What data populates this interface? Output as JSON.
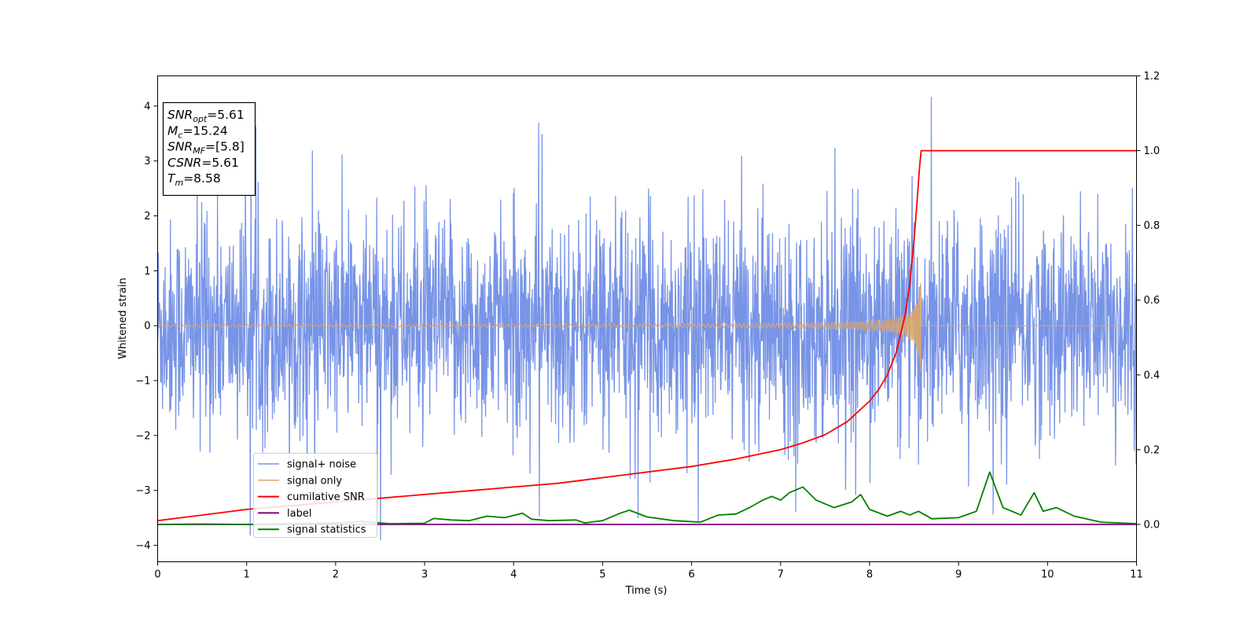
{
  "chart_data": {
    "type": "line",
    "xlabel": "Time (s)",
    "ylabel": "Whitened strain",
    "xlim": [
      0,
      11
    ],
    "ylim_left": [
      -4.3,
      4.55
    ],
    "ylim_right": [
      -0.1,
      1.2
    ],
    "x_ticks": [
      0,
      1,
      2,
      3,
      4,
      5,
      6,
      7,
      8,
      9,
      10,
      11
    ],
    "y_ticks_left": [
      -4,
      -3,
      -2,
      -1,
      0,
      1,
      2,
      3,
      4
    ],
    "y_ticks_right": [
      0.0,
      0.2,
      0.4,
      0.6,
      0.8,
      1.0,
      1.2
    ],
    "grid": false,
    "legend_placement": "lower-left",
    "info_box": {
      "lines": [
        {
          "main": "SNR",
          "sub": "opt",
          "rest": "=5.61"
        },
        {
          "main": "M",
          "sub": "c",
          "rest": "=15.24"
        },
        {
          "main": "SNR",
          "sub": "MF",
          "rest": "=[5.8]"
        },
        {
          "main": "CSNR",
          "sub": "",
          "rest": "=5.61"
        },
        {
          "main": "T",
          "sub": "m",
          "rest": "=8.58"
        }
      ]
    },
    "merger_time": 8.58,
    "series": [
      {
        "name": "signal+ noise",
        "color": "#7894e6",
        "axis": "left",
        "description_values": {
          "std": 0.95,
          "max": 4.2,
          "min": -3.9
        }
      },
      {
        "name": "signal only",
        "color": "#daa66d",
        "axis": "left",
        "peak_amplitude": 1.0,
        "peak_time": 8.58
      },
      {
        "name": "cumilative SNR",
        "color": "#ff0000",
        "axis": "right",
        "points": [
          [
            0,
            0.01
          ],
          [
            0.5,
            0.025
          ],
          [
            1,
            0.04
          ],
          [
            1.5,
            0.05
          ],
          [
            2,
            0.06
          ],
          [
            2.5,
            0.07
          ],
          [
            3,
            0.08
          ],
          [
            3.5,
            0.09
          ],
          [
            4,
            0.1
          ],
          [
            4.5,
            0.11
          ],
          [
            5,
            0.125
          ],
          [
            5.5,
            0.14
          ],
          [
            6,
            0.155
          ],
          [
            6.5,
            0.175
          ],
          [
            7,
            0.2
          ],
          [
            7.25,
            0.218
          ],
          [
            7.5,
            0.24
          ],
          [
            7.75,
            0.275
          ],
          [
            8,
            0.33
          ],
          [
            8.1,
            0.36
          ],
          [
            8.2,
            0.4
          ],
          [
            8.3,
            0.46
          ],
          [
            8.4,
            0.56
          ],
          [
            8.45,
            0.64
          ],
          [
            8.5,
            0.76
          ],
          [
            8.53,
            0.85
          ],
          [
            8.56,
            0.95
          ],
          [
            8.58,
            1.0
          ],
          [
            11,
            1.0
          ]
        ]
      },
      {
        "name": "label",
        "color": "#800080",
        "axis": "right",
        "points": [
          [
            0,
            0.0
          ],
          [
            11,
            0.0
          ]
        ]
      },
      {
        "name": "signal statistics",
        "color": "#008000",
        "axis": "right",
        "points": [
          [
            0,
            0.0
          ],
          [
            0.5,
            0.001
          ],
          [
            1,
            0.0
          ],
          [
            1.5,
            0.002
          ],
          [
            2,
            0.004
          ],
          [
            2.3,
            0.008
          ],
          [
            2.6,
            0.002
          ],
          [
            3,
            0.003
          ],
          [
            3.1,
            0.016
          ],
          [
            3.3,
            0.012
          ],
          [
            3.5,
            0.01
          ],
          [
            3.7,
            0.022
          ],
          [
            3.9,
            0.018
          ],
          [
            4.1,
            0.03
          ],
          [
            4.2,
            0.014
          ],
          [
            4.4,
            0.01
          ],
          [
            4.7,
            0.012
          ],
          [
            4.8,
            0.004
          ],
          [
            5,
            0.01
          ],
          [
            5.2,
            0.03
          ],
          [
            5.3,
            0.038
          ],
          [
            5.5,
            0.02
          ],
          [
            5.8,
            0.01
          ],
          [
            6.1,
            0.006
          ],
          [
            6.3,
            0.025
          ],
          [
            6.5,
            0.028
          ],
          [
            6.65,
            0.045
          ],
          [
            6.8,
            0.065
          ],
          [
            6.9,
            0.075
          ],
          [
            7.0,
            0.065
          ],
          [
            7.1,
            0.085
          ],
          [
            7.25,
            0.1
          ],
          [
            7.4,
            0.065
          ],
          [
            7.6,
            0.045
          ],
          [
            7.8,
            0.06
          ],
          [
            7.9,
            0.08
          ],
          [
            8.0,
            0.04
          ],
          [
            8.2,
            0.022
          ],
          [
            8.35,
            0.035
          ],
          [
            8.45,
            0.025
          ],
          [
            8.55,
            0.035
          ],
          [
            8.7,
            0.015
          ],
          [
            9.0,
            0.018
          ],
          [
            9.2,
            0.035
          ],
          [
            9.35,
            0.14
          ],
          [
            9.5,
            0.045
          ],
          [
            9.7,
            0.025
          ],
          [
            9.85,
            0.085
          ],
          [
            9.95,
            0.035
          ],
          [
            10.1,
            0.045
          ],
          [
            10.3,
            0.022
          ],
          [
            10.6,
            0.006
          ],
          [
            11,
            0.002
          ]
        ]
      }
    ]
  }
}
